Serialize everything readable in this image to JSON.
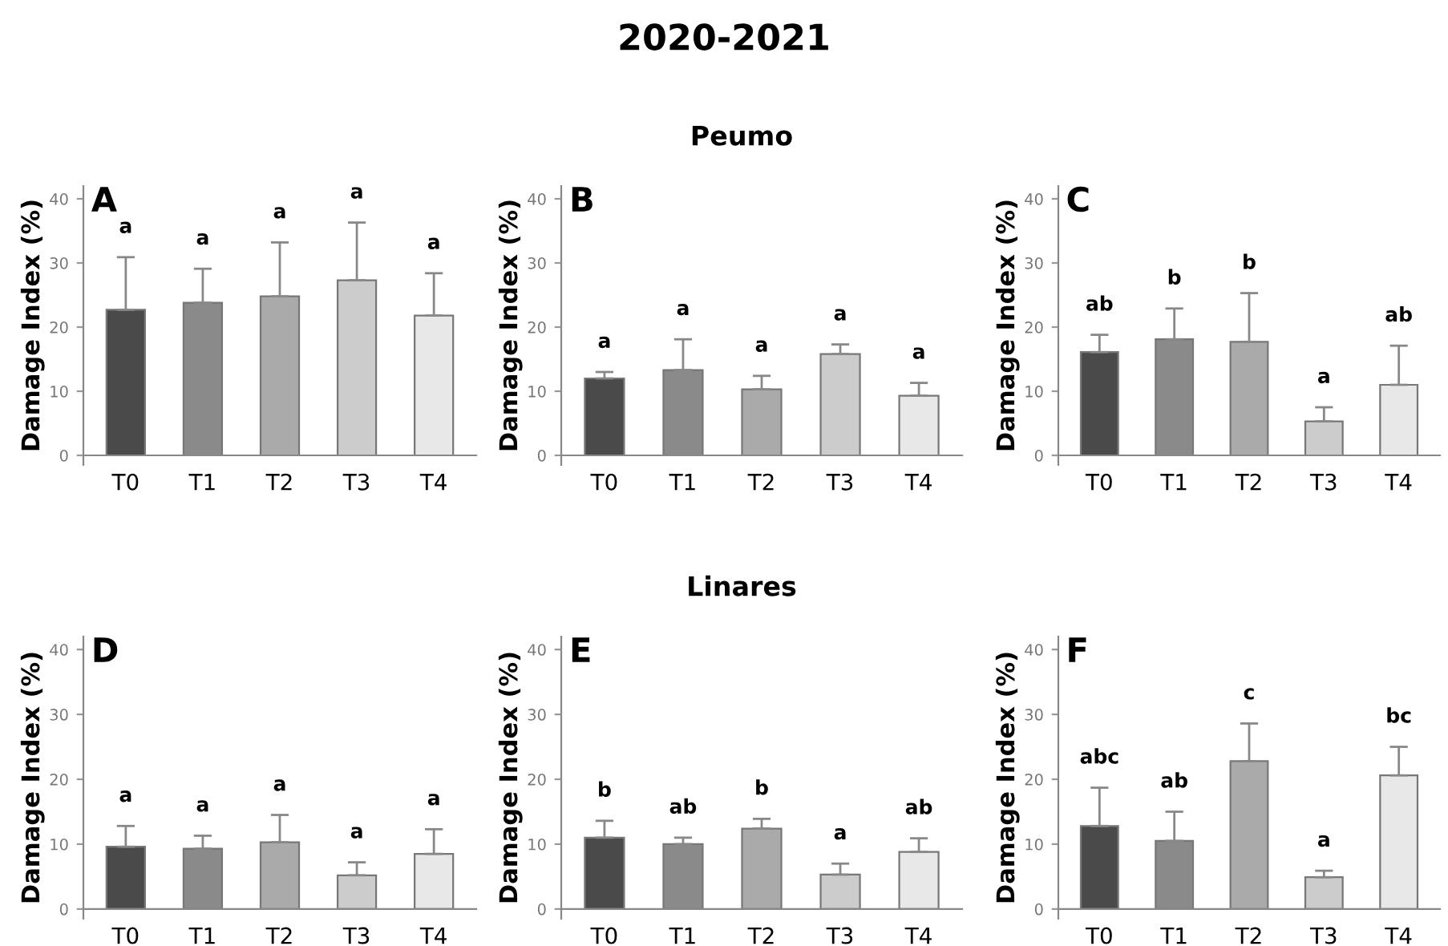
{
  "chart_data": [
    {
      "type": "bar",
      "title": "A",
      "annotations": [
        "a",
        "a",
        "a",
        "a",
        "a"
      ],
      "ylabel": "Damage Index (%)",
      "categories": [
        "T0",
        "T1",
        "T2",
        "T3",
        "T4"
      ],
      "values": [
        22.7,
        23.8,
        24.8,
        27.3,
        21.8
      ],
      "errors": [
        [
          22.7,
          30.9
        ],
        [
          23.8,
          29.1
        ],
        [
          24.8,
          33.2
        ],
        [
          27.3,
          36.3
        ],
        [
          21.8,
          28.4
        ]
      ],
      "colors": [
        "#4a4a4a",
        "#8a8a8a",
        "#aaaaaa",
        "#cccccc",
        "#e8e8e8"
      ],
      "ylim": [
        -1.5,
        42
      ],
      "yticks": [
        0,
        10,
        20,
        30,
        40
      ]
    },
    {
      "type": "bar",
      "title": "B",
      "subtitle": "Peumo",
      "ylabel": "Damage Index (%)",
      "annotations": [
        "a",
        "a",
        "a",
        "a",
        "a",
        "2020-2021"
      ],
      "categories": [
        "T0",
        "T1",
        "T2",
        "T3",
        "T4"
      ],
      "values": [
        12.0,
        13.3,
        10.3,
        15.8,
        9.3
      ],
      "errors": [
        [
          12.0,
          13.0
        ],
        [
          13.3,
          18.1
        ],
        [
          10.3,
          12.4
        ],
        [
          15.8,
          17.3
        ],
        [
          9.3,
          11.3
        ]
      ],
      "colors": [
        "#4a4a4a",
        "#8a8a8a",
        "#aaaaaa",
        "#cccccc",
        "#e8e8e8"
      ],
      "ylim": [
        -1.5,
        42
      ],
      "yticks": [
        0,
        10,
        20,
        30,
        40
      ]
    },
    {
      "type": "bar",
      "title": "C",
      "ylabel": "Damage Index (%)",
      "annotations": [
        "ab",
        "b",
        "b",
        "a",
        "ab"
      ],
      "categories": [
        "T0",
        "T1",
        "T2",
        "T3",
        "T4"
      ],
      "values": [
        16.1,
        18.1,
        17.7,
        5.3,
        11.0
      ],
      "errors": [
        [
          16.1,
          18.8
        ],
        [
          18.1,
          22.9
        ],
        [
          17.7,
          25.3
        ],
        [
          5.3,
          7.5
        ],
        [
          11.0,
          17.1
        ]
      ],
      "colors": [
        "#4a4a4a",
        "#8a8a8a",
        "#aaaaaa",
        "#cccccc",
        "#e8e8e8"
      ],
      "ylim": [
        -1.5,
        42
      ],
      "yticks": [
        0,
        10,
        20,
        30,
        40
      ]
    },
    {
      "type": "bar",
      "title": "D",
      "ylabel": "Damage Index (%)",
      "annotations": [
        "a",
        "a",
        "a",
        "a",
        "a"
      ],
      "categories": [
        "T0",
        "T1",
        "T2",
        "T3",
        "T4"
      ],
      "values": [
        9.6,
        9.3,
        10.3,
        5.2,
        8.5
      ],
      "errors": [
        [
          9.6,
          12.8
        ],
        [
          9.3,
          11.3
        ],
        [
          10.3,
          14.5
        ],
        [
          5.2,
          7.2
        ],
        [
          8.5,
          12.3
        ]
      ],
      "colors": [
        "#4a4a4a",
        "#8a8a8a",
        "#aaaaaa",
        "#cccccc",
        "#e8e8e8"
      ],
      "ylim": [
        -1.5,
        42
      ],
      "yticks": [
        0,
        10,
        20,
        30,
        40
      ]
    },
    {
      "type": "bar",
      "title": "E",
      "subtitle": "Linares",
      "ylabel": "Damage Index (%)",
      "annotations": [
        "b",
        "ab",
        "b",
        "a",
        "ab"
      ],
      "categories": [
        "T0",
        "T1",
        "T2",
        "T3",
        "T4"
      ],
      "values": [
        11.0,
        10.0,
        12.4,
        5.3,
        8.8
      ],
      "errors": [
        [
          11.0,
          13.6
        ],
        [
          10.0,
          11.0
        ],
        [
          12.4,
          13.9
        ],
        [
          5.3,
          7.0
        ],
        [
          8.8,
          10.9
        ]
      ],
      "colors": [
        "#4a4a4a",
        "#8a8a8a",
        "#aaaaaa",
        "#cccccc",
        "#e8e8e8"
      ],
      "ylim": [
        -1.5,
        42
      ],
      "yticks": [
        0,
        10,
        20,
        30,
        40
      ]
    },
    {
      "type": "bar",
      "title": "F",
      "ylabel": "Damage Index (%)",
      "annotations": [
        "abc",
        "ab",
        "c",
        "a",
        "bc"
      ],
      "categories": [
        "T0",
        "T1",
        "T2",
        "T3",
        "T4"
      ],
      "values": [
        12.8,
        10.5,
        22.8,
        4.9,
        20.6
      ],
      "errors": [
        [
          12.8,
          18.7
        ],
        [
          10.5,
          15.0
        ],
        [
          22.8,
          28.6
        ],
        [
          4.9,
          5.9
        ],
        [
          20.6,
          25.0
        ]
      ],
      "colors": [
        "#4a4a4a",
        "#8a8a8a",
        "#aaaaaa",
        "#cccccc",
        "#e8e8e8"
      ],
      "ylim": [
        -1.5,
        42
      ],
      "yticks": [
        0,
        10,
        20,
        30,
        40
      ]
    }
  ]
}
